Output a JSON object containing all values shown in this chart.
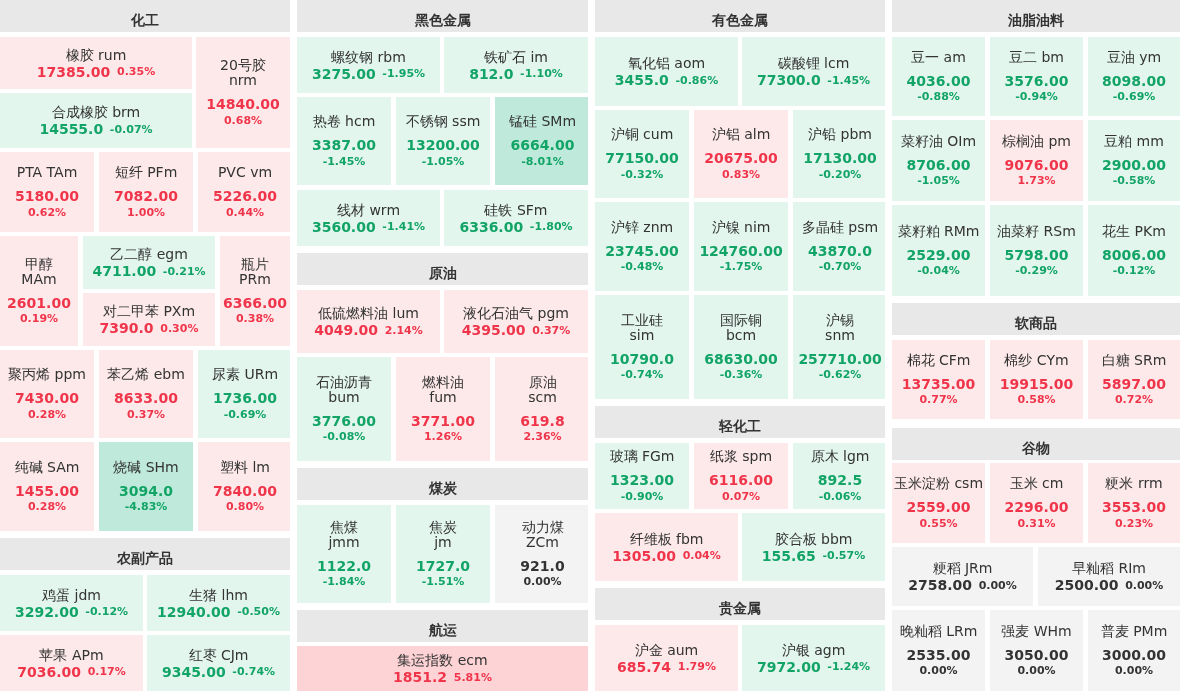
{
  "chart_data": [
    {
      "type": "other",
      "title": "化工",
      "categories": [
        "橡胶 rum",
        "20号胶 nrm",
        "合成橡胶 brm",
        "PTA TAm",
        "短纤 PFm",
        "PVC vm",
        "甲醇 MAm",
        "乙二醇 egm",
        "对二甲苯 PXm",
        "瓶片 PRm",
        "聚丙烯 ppm",
        "苯乙烯 ebm",
        "尿素 URm",
        "纯碱 SAm",
        "烧碱 SHm",
        "塑料 lm"
      ],
      "series": [
        {
          "values": [
            17385,
            14840,
            14555,
            5180,
            7082,
            5226,
            2601,
            4711,
            7390,
            6366,
            7430,
            8633,
            1736,
            1455,
            3094,
            7840
          ],
          "value_labels": [
            "17385.00",
            "14840.00",
            "14555.0",
            "5180.00",
            "7082.00",
            "5226.00",
            "2601.00",
            "4711.00",
            "7390.0",
            "6366.00",
            "7430.00",
            "8633.00",
            "1736.00",
            "1455.00",
            "3094.0",
            "7840.00"
          ],
          "colors": [
            "#fde9ea",
            "#fde9ea",
            "#e2f6ee",
            "#fde9ea",
            "#fde9ea",
            "#fde9ea",
            "#fde9ea",
            "#e2f6ee",
            "#fde9ea",
            "#fde9ea",
            "#fde9ea",
            "#fde9ea",
            "#e2f6ee",
            "#fde9ea",
            "#bfeadb",
            "#fde9ea"
          ]
        },
        {
          "values": [
            0.35,
            0.68,
            -0.07,
            0.62,
            1.0,
            0.44,
            0.19,
            -0.21,
            0.3,
            0.38,
            0.28,
            0.37,
            -0.69,
            0.28,
            -4.83,
            0.8
          ],
          "value_labels": [
            "0.35%",
            "0.68%",
            "-0.07%",
            "0.62%",
            "1.00%",
            "0.44%",
            "0.19%",
            "-0.21%",
            "0.30%",
            "0.38%",
            "0.28%",
            "0.37%",
            "-0.69%",
            "0.28%",
            "-4.83%",
            "0.80%"
          ]
        }
      ]
    },
    {
      "type": "other",
      "title": "农副产品",
      "categories": [
        "鸡蛋 jdm",
        "生猪 lhm",
        "苹果 APm",
        "红枣 CJm"
      ],
      "series": [
        {
          "values": [
            3292,
            12940,
            7036,
            9345
          ],
          "value_labels": [
            "3292.00",
            "12940.00",
            "7036.00",
            "9345.00"
          ],
          "colors": [
            "#e2f6ee",
            "#e2f6ee",
            "#fde9ea",
            "#e2f6ee"
          ]
        },
        {
          "values": [
            -0.12,
            -0.5,
            0.17,
            -0.74
          ],
          "value_labels": [
            "-0.12%",
            "-0.50%",
            "0.17%",
            "-0.74%"
          ]
        }
      ]
    },
    {
      "type": "other",
      "title": "黑色金属",
      "categories": [
        "螺纹钢 rbm",
        "铁矿石 im",
        "热卷 hcm",
        "不锈钢 ssm",
        "锰硅 SMm",
        "线材 wrm",
        "硅铁 SFm"
      ],
      "series": [
        {
          "values": [
            3275,
            812,
            3387,
            13200,
            6664,
            3560,
            6336
          ],
          "value_labels": [
            "3275.00",
            "812.0",
            "3387.00",
            "13200.00",
            "6664.00",
            "3560.00",
            "6336.00"
          ],
          "colors": [
            "#e2f6ee",
            "#e2f6ee",
            "#e2f6ee",
            "#e2f6ee",
            "#bfeadb",
            "#e2f6ee",
            "#e2f6ee"
          ]
        },
        {
          "values": [
            -1.95,
            -1.1,
            -1.45,
            -1.05,
            -8.01,
            -1.41,
            -1.8
          ],
          "value_labels": [
            "-1.95%",
            "-1.10%",
            "-1.45%",
            "-1.05%",
            "-8.01%",
            "-1.41%",
            "-1.80%"
          ]
        }
      ]
    },
    {
      "type": "other",
      "title": "原油",
      "categories": [
        "低硫燃料油 lum",
        "液化石油气 pgm",
        "石油沥青 bum",
        "燃料油 fum",
        "原油 scm"
      ],
      "series": [
        {
          "values": [
            4049,
            4395,
            3776,
            3771,
            619.8
          ],
          "value_labels": [
            "4049.00",
            "4395.00",
            "3776.00",
            "3771.00",
            "619.8"
          ],
          "colors": [
            "#fde9ea",
            "#fde9ea",
            "#e2f6ee",
            "#fde9ea",
            "#fde9ea"
          ]
        },
        {
          "values": [
            2.14,
            0.37,
            -0.08,
            1.26,
            2.36
          ],
          "value_labels": [
            "2.14%",
            "0.37%",
            "-0.08%",
            "1.26%",
            "2.36%"
          ]
        }
      ]
    },
    {
      "type": "other",
      "title": "煤炭",
      "categories": [
        "焦煤 jmm",
        "焦炭 jm",
        "动力煤 ZCm"
      ],
      "series": [
        {
          "values": [
            1122,
            1727,
            921
          ],
          "value_labels": [
            "1122.0",
            "1727.0",
            "921.0"
          ],
          "colors": [
            "#e2f6ee",
            "#e2f6ee",
            "#f3f3f3"
          ]
        },
        {
          "values": [
            -1.84,
            -1.51,
            0
          ],
          "value_labels": [
            "-1.84%",
            "-1.51%",
            "0.00%"
          ]
        }
      ]
    },
    {
      "type": "other",
      "title": "航运",
      "categories": [
        "集运指数 ecm"
      ],
      "series": [
        {
          "values": [
            1851.2
          ],
          "value_labels": [
            "1851.2"
          ],
          "colors": [
            "#fdd3d6"
          ]
        },
        {
          "values": [
            5.81
          ],
          "value_labels": [
            "5.81%"
          ]
        }
      ]
    },
    {
      "type": "other",
      "title": "有色金属",
      "categories": [
        "氧化铝 aom",
        "碳酸锂 lcm",
        "沪铜 cum",
        "沪铝 alm",
        "沪铅 pbm",
        "沪锌 znm",
        "沪镍 nim",
        "多晶硅 psm",
        "工业硅 sim",
        "国际铜 bcm",
        "沪锡 snm"
      ],
      "series": [
        {
          "values": [
            3455,
            77300,
            77150,
            20675,
            17130,
            23745,
            124760,
            43870,
            10790,
            68630,
            257710
          ],
          "value_labels": [
            "3455.0",
            "77300.0",
            "77150.00",
            "20675.00",
            "17130.00",
            "23745.00",
            "124760.00",
            "43870.0",
            "10790.0",
            "68630.00",
            "257710.00"
          ],
          "colors": [
            "#e2f6ee",
            "#e2f6ee",
            "#e2f6ee",
            "#fde9ea",
            "#e2f6ee",
            "#e2f6ee",
            "#e2f6ee",
            "#e2f6ee",
            "#e2f6ee",
            "#e2f6ee",
            "#e2f6ee"
          ]
        },
        {
          "values": [
            -0.86,
            -1.45,
            -0.32,
            0.83,
            -0.2,
            -0.48,
            -1.75,
            -0.7,
            -0.74,
            -0.36,
            -0.62
          ],
          "value_labels": [
            "-0.86%",
            "-1.45%",
            "-0.32%",
            "0.83%",
            "-0.20%",
            "-0.48%",
            "-1.75%",
            "-0.70%",
            "-0.74%",
            "-0.36%",
            "-0.62%"
          ]
        }
      ]
    },
    {
      "type": "other",
      "title": "轻化工",
      "categories": [
        "玻璃 FGm",
        "纸浆 spm",
        "原木 lgm",
        "纤维板 fbm",
        "胶合板 bbm"
      ],
      "series": [
        {
          "values": [
            1323,
            6116,
            892.5,
            1305,
            155.65
          ],
          "value_labels": [
            "1323.00",
            "6116.00",
            "892.5",
            "1305.00",
            "155.65"
          ],
          "colors": [
            "#e2f6ee",
            "#fde9ea",
            "#e2f6ee",
            "#fde9ea",
            "#e2f6ee"
          ]
        },
        {
          "values": [
            -0.9,
            0.07,
            -0.06,
            0.04,
            -0.57
          ],
          "value_labels": [
            "-0.90%",
            "0.07%",
            "-0.06%",
            "0.04%",
            "-0.57%"
          ]
        }
      ]
    },
    {
      "type": "other",
      "title": "贵金属",
      "categories": [
        "沪金 aum",
        "沪银 agm"
      ],
      "series": [
        {
          "values": [
            685.74,
            7972
          ],
          "value_labels": [
            "685.74",
            "7972.00"
          ],
          "colors": [
            "#fde9ea",
            "#e2f6ee"
          ]
        },
        {
          "values": [
            1.79,
            -1.24
          ],
          "value_labels": [
            "1.79%",
            "-1.24%"
          ]
        }
      ]
    },
    {
      "type": "other",
      "title": "油脂油料",
      "categories": [
        "豆一 am",
        "豆二 bm",
        "豆油 ym",
        "菜籽油 OIm",
        "棕榈油 pm",
        "豆粕 mm",
        "菜籽粕 RMm",
        "油菜籽 RSm",
        "花生 PKm"
      ],
      "series": [
        {
          "values": [
            4036,
            3576,
            8098,
            8706,
            9076,
            2900,
            2529,
            5798,
            8006
          ],
          "value_labels": [
            "4036.00",
            "3576.00",
            "8098.00",
            "8706.00",
            "9076.00",
            "2900.00",
            "2529.00",
            "5798.00",
            "8006.00"
          ],
          "colors": [
            "#e2f6ee",
            "#e2f6ee",
            "#e2f6ee",
            "#e2f6ee",
            "#fde9ea",
            "#e2f6ee",
            "#e2f6ee",
            "#e2f6ee",
            "#e2f6ee"
          ]
        },
        {
          "values": [
            -0.88,
            -0.94,
            -0.69,
            -1.05,
            1.73,
            -0.58,
            -0.04,
            -0.29,
            -0.12
          ],
          "value_labels": [
            "-0.88%",
            "-0.94%",
            "-0.69%",
            "-1.05%",
            "1.73%",
            "-0.58%",
            "-0.04%",
            "-0.29%",
            "-0.12%"
          ]
        }
      ]
    },
    {
      "type": "other",
      "title": "软商品",
      "categories": [
        "棉花 CFm",
        "棉纱 CYm",
        "白糖 SRm"
      ],
      "series": [
        {
          "values": [
            13735,
            19915,
            5897
          ],
          "value_labels": [
            "13735.00",
            "19915.00",
            "5897.00"
          ],
          "colors": [
            "#fde9ea",
            "#fde9ea",
            "#fde9ea"
          ]
        },
        {
          "values": [
            0.77,
            0.58,
            0.72
          ],
          "value_labels": [
            "0.77%",
            "0.58%",
            "0.72%"
          ]
        }
      ]
    },
    {
      "type": "other",
      "title": "谷物",
      "categories": [
        "玉米淀粉 csm",
        "玉米 cm",
        "粳米 rrm",
        "粳稻 JRm",
        "早籼稻 RIm",
        "晚籼稻 LRm",
        "强麦 WHm",
        "普麦 PMm"
      ],
      "series": [
        {
          "values": [
            2559,
            2296,
            3553,
            2758,
            2500,
            2535,
            3050,
            3000
          ],
          "value_labels": [
            "2559.00",
            "2296.00",
            "3553.00",
            "2758.00",
            "2500.00",
            "2535.00",
            "3050.00",
            "3000.00"
          ],
          "colors": [
            "#fde9ea",
            "#fde9ea",
            "#fde9ea",
            "#f3f3f3",
            "#f3f3f3",
            "#f3f3f3",
            "#f3f3f3",
            "#f3f3f3"
          ]
        },
        {
          "values": [
            0.55,
            0.31,
            0.23,
            0,
            0,
            0,
            0,
            0
          ],
          "value_labels": [
            "0.55%",
            "0.31%",
            "0.23%",
            "0.00%",
            "0.00%",
            "0.00%",
            "0.00%",
            "0.00%"
          ]
        }
      ]
    }
  ]
}
